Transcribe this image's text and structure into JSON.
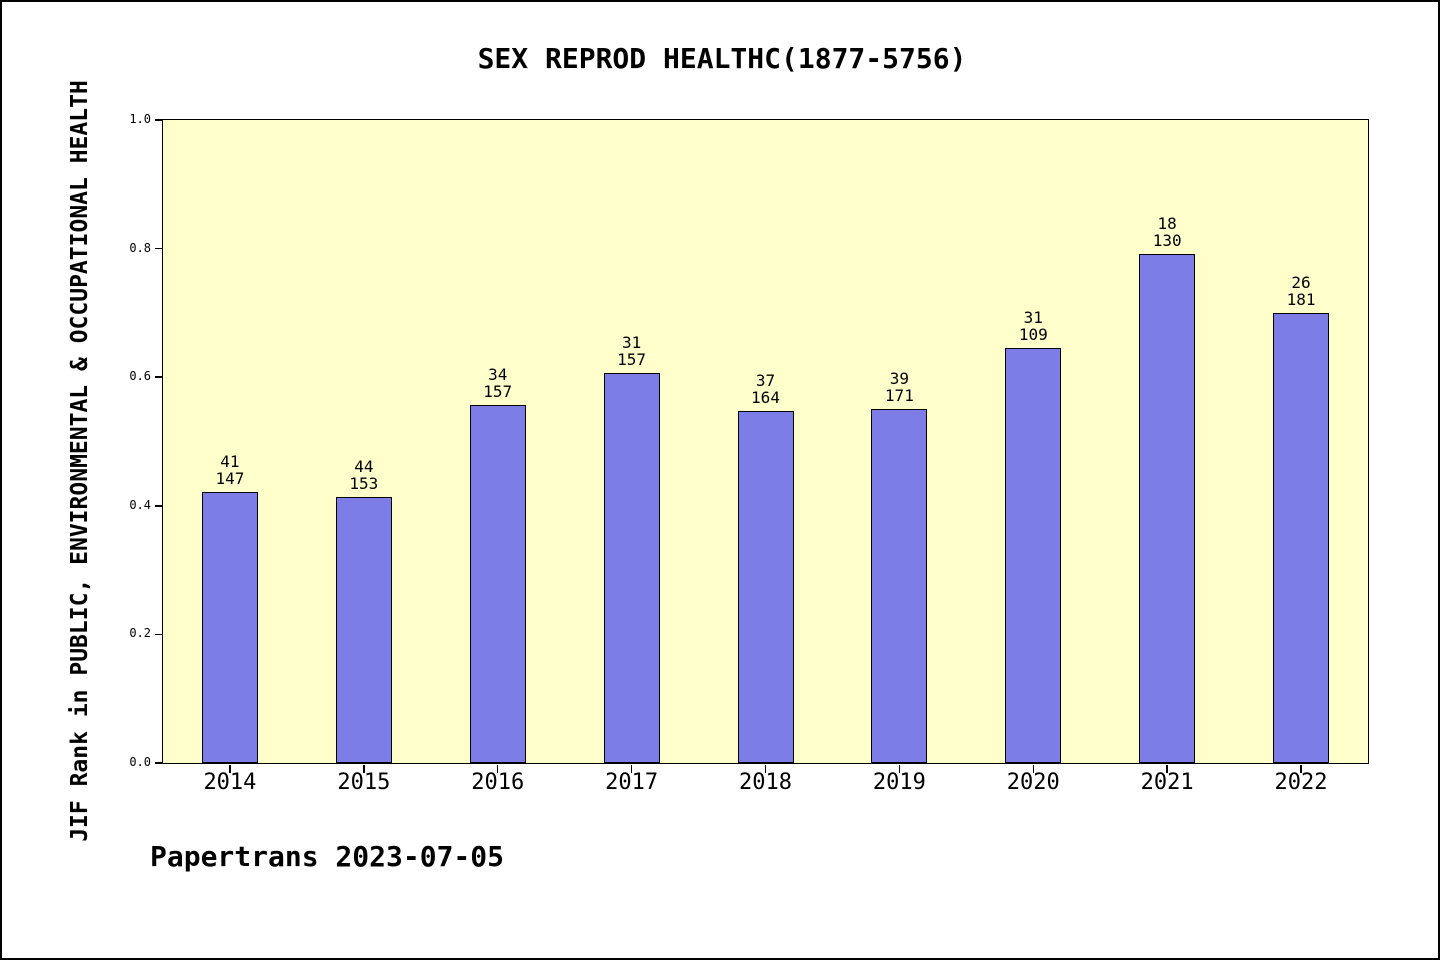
{
  "chart_data": {
    "type": "bar",
    "title": "SEX REPROD HEALTHC(1877-5756)",
    "ylabel": "JIF Rank in PUBLIC, ENVIRONMENTAL & OCCUPATIONAL HEALTH",
    "xlabel": "",
    "footer": "Papertrans 2023-07-05",
    "ylim": [
      0.0,
      1.0
    ],
    "yticks": [
      0.0,
      0.2,
      0.4,
      0.6,
      0.8,
      1.0
    ],
    "ytick_labels": [
      "0.0",
      "0.2",
      "0.4",
      "0.6",
      "0.8",
      "1.0"
    ],
    "grid": false,
    "legend_position": "none",
    "plot_bg_color": "#ffffcc",
    "bar_color": "#7d7de8",
    "categories": [
      "2014",
      "2015",
      "2016",
      "2017",
      "2018",
      "2019",
      "2020",
      "2021",
      "2022"
    ],
    "values": [
      0.422,
      0.413,
      0.557,
      0.607,
      0.548,
      0.551,
      0.645,
      0.792,
      0.7
    ],
    "bar_labels": [
      {
        "rank": "41",
        "total": "147"
      },
      {
        "rank": "44",
        "total": "153"
      },
      {
        "rank": "34",
        "total": "157"
      },
      {
        "rank": "31",
        "total": "157"
      },
      {
        "rank": "37",
        "total": "164"
      },
      {
        "rank": "39",
        "total": "171"
      },
      {
        "rank": "31",
        "total": "109"
      },
      {
        "rank": "18",
        "total": "130"
      },
      {
        "rank": "26",
        "total": "181"
      }
    ]
  }
}
